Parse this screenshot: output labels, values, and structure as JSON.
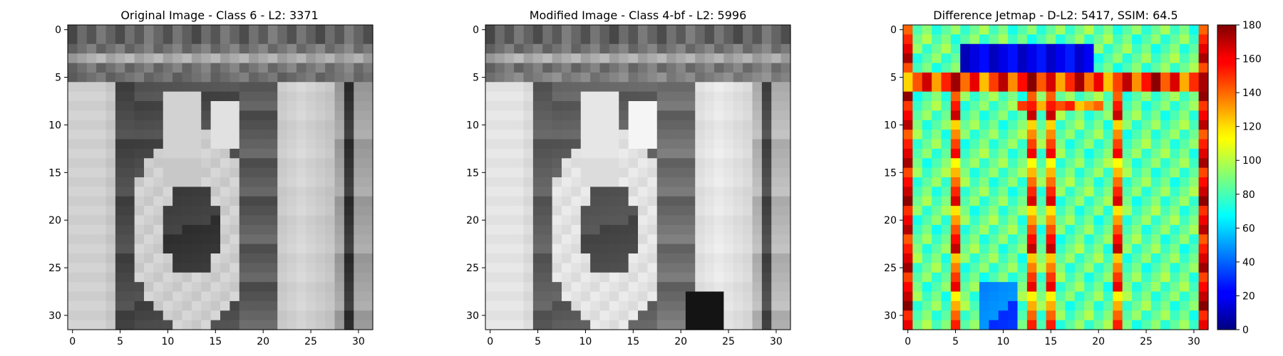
{
  "chart_data": [
    {
      "type": "heatmap",
      "title": "Original Image - Class 6 - L2: 3371",
      "title_color": "#ff0000",
      "colormap": "gray",
      "image_size": [
        32,
        32
      ],
      "xlim": [
        -0.5,
        31.5
      ],
      "ylim": [
        31.5,
        -0.5
      ],
      "x_ticks": [
        0,
        5,
        10,
        15,
        20,
        25,
        30
      ],
      "y_ticks": [
        0,
        5,
        10,
        15,
        20,
        25,
        30
      ],
      "grid": false
    },
    {
      "type": "heatmap",
      "title": "Modified Image - Class 4-bf - L2: 5996",
      "title_color": "#000000",
      "colormap": "gray",
      "image_size": [
        32,
        32
      ],
      "xlim": [
        -0.5,
        31.5
      ],
      "ylim": [
        31.5,
        -0.5
      ],
      "x_ticks": [
        0,
        5,
        10,
        15,
        20,
        25,
        30
      ],
      "y_ticks": [
        0,
        5,
        10,
        15,
        20,
        25,
        30
      ],
      "grid": false
    },
    {
      "type": "heatmap",
      "title": "Difference Jetmap - D-L2: 5417, SSIM: 64.5",
      "title_color": "#000000",
      "colormap": "jet",
      "image_size": [
        32,
        32
      ],
      "xlim": [
        -0.5,
        31.5
      ],
      "ylim": [
        31.5,
        -0.5
      ],
      "x_ticks": [
        0,
        5,
        10,
        15,
        20,
        25,
        30
      ],
      "y_ticks": [
        0,
        5,
        10,
        15,
        20,
        25,
        30
      ],
      "grid": false,
      "colorbar": {
        "range": [
          0,
          180
        ],
        "ticks": [
          0,
          20,
          40,
          60,
          80,
          100,
          120,
          140,
          160,
          180
        ],
        "placement": "right"
      }
    }
  ]
}
